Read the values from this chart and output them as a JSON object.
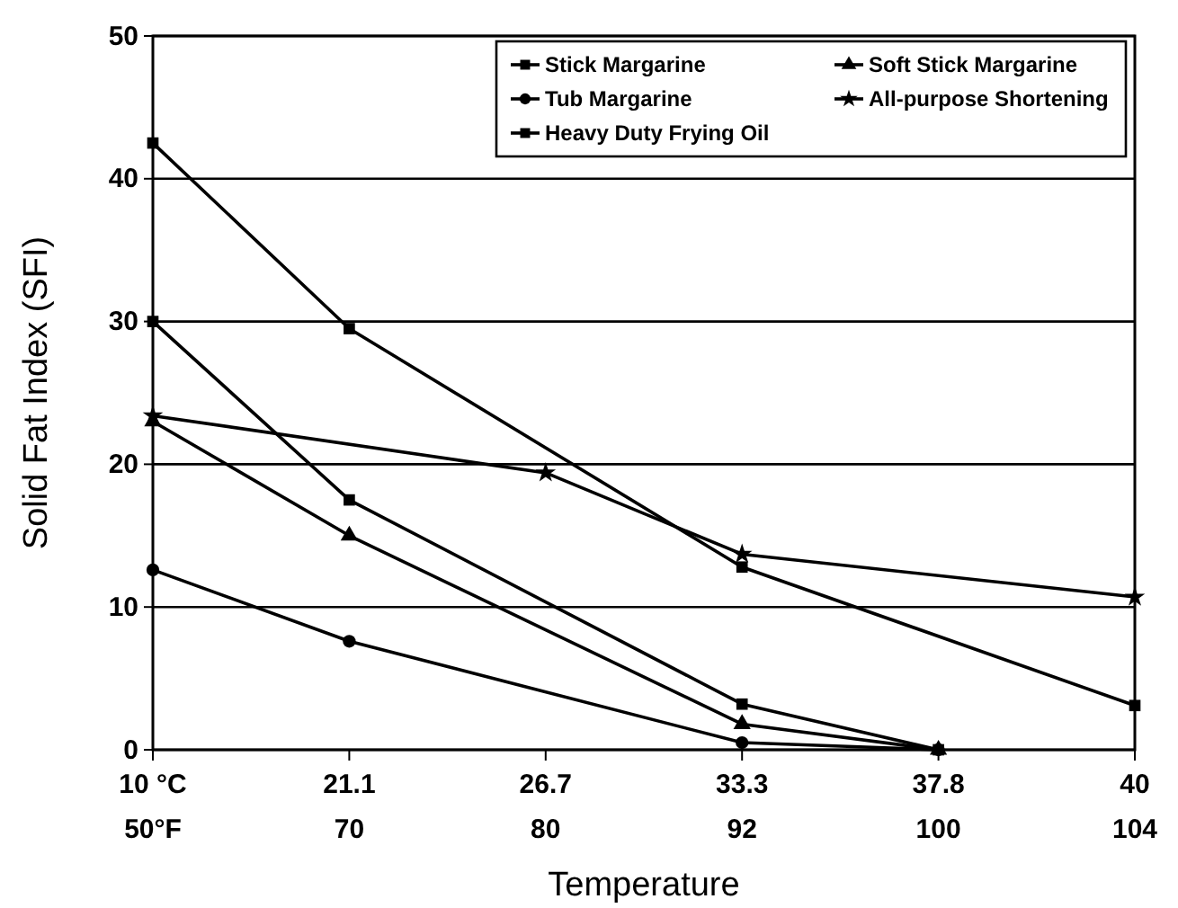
{
  "chart_data": {
    "type": "line",
    "xlabel": "Temperature",
    "ylabel": "Solid Fat Index (SFI)",
    "categories": [
      "10 °C\n50°F",
      "21.1\n70",
      "26.7\n80",
      "33.3\n92",
      "37.8\n100",
      "40\n104"
    ],
    "ylim": [
      0,
      50
    ],
    "yticks": [
      0,
      10,
      20,
      30,
      40,
      50
    ],
    "grid": "y",
    "legend": "top right",
    "series": [
      {
        "name": "Stick Margarine",
        "color": "#000000",
        "marker": "square",
        "values": [
          30,
          17.5,
          null,
          3.2,
          0,
          null
        ]
      },
      {
        "name": "Soft Stick Margarine",
        "color": "#000000",
        "marker": "triangle",
        "values": [
          23,
          15,
          null,
          1.8,
          0,
          null
        ]
      },
      {
        "name": "Tub Margarine",
        "color": "#000000",
        "marker": "circle",
        "values": [
          12.6,
          7.6,
          null,
          0.5,
          0,
          null
        ]
      },
      {
        "name": "All-purpose Shortening",
        "color": "#000000",
        "marker": "star",
        "values": [
          23.4,
          null,
          19.4,
          13.7,
          null,
          10.7
        ]
      },
      {
        "name": "Heavy Duty Frying Oil",
        "color": "#000000",
        "marker": "square",
        "values": [
          42.5,
          29.5,
          null,
          12.8,
          null,
          3.1
        ]
      }
    ]
  }
}
